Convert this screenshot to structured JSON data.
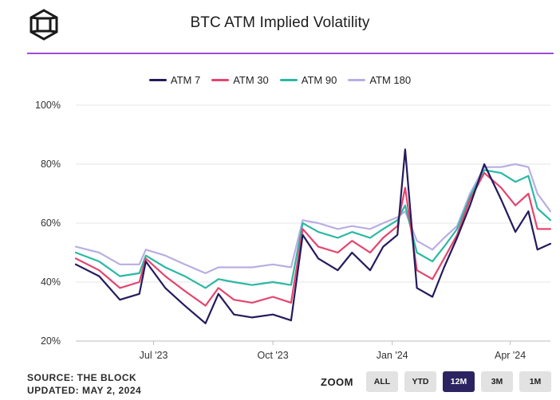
{
  "header": {
    "title": "BTC ATM Implied Volatility"
  },
  "footer": {
    "source": "SOURCE: THE BLOCK",
    "updated": "UPDATED: MAY 2, 2024"
  },
  "zoom": {
    "label": "ZOOM",
    "buttons": [
      "ALL",
      "YTD",
      "12M",
      "3M",
      "1M"
    ],
    "active": "12M"
  },
  "colors": {
    "atm7": "#241b5c",
    "atm30": "#e3456e",
    "atm90": "#2bb8a3",
    "atm180": "#b9aee3",
    "accent_rule": "#a14ad8",
    "grid": "#e4e4e4"
  },
  "chart_data": {
    "type": "line",
    "title": "BTC ATM Implied Volatility",
    "ylim": [
      20,
      100
    ],
    "yticks": [
      "20%",
      "40%",
      "60%",
      "80%",
      "100%"
    ],
    "ytick_values": [
      20,
      40,
      60,
      80,
      100
    ],
    "xlim": [
      "2023-05-02",
      "2024-05-02"
    ],
    "x_ticks": [
      {
        "label": "Jul '23",
        "date": "2023-07-01"
      },
      {
        "label": "Oct '23",
        "date": "2023-10-01"
      },
      {
        "label": "Jan '24",
        "date": "2024-01-01"
      },
      {
        "label": "Apr '24",
        "date": "2024-04-01"
      }
    ],
    "legend": [
      "ATM 7",
      "ATM 30",
      "ATM 90",
      "ATM 180"
    ],
    "series": [
      {
        "name": "ATM 7",
        "dates": [
          "2023-05-02",
          "2023-05-20",
          "2023-06-05",
          "2023-06-20",
          "2023-06-25",
          "2023-07-10",
          "2023-07-25",
          "2023-08-10",
          "2023-08-20",
          "2023-09-01",
          "2023-09-15",
          "2023-10-01",
          "2023-10-15",
          "2023-10-24",
          "2023-11-05",
          "2023-11-20",
          "2023-12-01",
          "2023-12-15",
          "2023-12-25",
          "2024-01-05",
          "2024-01-11",
          "2024-01-20",
          "2024-02-01",
          "2024-02-10",
          "2024-02-20",
          "2024-03-01",
          "2024-03-12",
          "2024-03-25",
          "2024-04-05",
          "2024-04-15",
          "2024-04-22",
          "2024-05-02"
        ],
        "values": [
          46,
          42,
          34,
          36,
          47,
          38,
          32,
          26,
          36,
          29,
          28,
          29,
          27,
          56,
          48,
          44,
          50,
          44,
          52,
          56,
          85,
          38,
          35,
          45,
          55,
          66,
          80,
          68,
          57,
          64,
          51,
          53
        ]
      },
      {
        "name": "ATM 30",
        "dates": [
          "2023-05-02",
          "2023-05-20",
          "2023-06-05",
          "2023-06-20",
          "2023-06-25",
          "2023-07-10",
          "2023-07-25",
          "2023-08-10",
          "2023-08-20",
          "2023-09-01",
          "2023-09-15",
          "2023-10-01",
          "2023-10-15",
          "2023-10-24",
          "2023-11-05",
          "2023-11-20",
          "2023-12-01",
          "2023-12-15",
          "2023-12-25",
          "2024-01-05",
          "2024-01-11",
          "2024-01-20",
          "2024-02-01",
          "2024-02-10",
          "2024-02-20",
          "2024-03-01",
          "2024-03-12",
          "2024-03-25",
          "2024-04-05",
          "2024-04-15",
          "2024-04-22",
          "2024-05-02"
        ],
        "values": [
          48,
          44,
          38,
          40,
          48,
          42,
          37,
          32,
          38,
          34,
          33,
          35,
          33,
          58,
          52,
          50,
          54,
          50,
          55,
          59,
          72,
          44,
          41,
          48,
          56,
          68,
          77,
          72,
          66,
          70,
          58,
          58
        ]
      },
      {
        "name": "ATM 90",
        "dates": [
          "2023-05-02",
          "2023-05-20",
          "2023-06-05",
          "2023-06-20",
          "2023-06-25",
          "2023-07-10",
          "2023-07-25",
          "2023-08-10",
          "2023-08-20",
          "2023-09-01",
          "2023-09-15",
          "2023-10-01",
          "2023-10-15",
          "2023-10-24",
          "2023-11-05",
          "2023-11-20",
          "2023-12-01",
          "2023-12-15",
          "2023-12-25",
          "2024-01-05",
          "2024-01-11",
          "2024-01-20",
          "2024-02-01",
          "2024-02-10",
          "2024-02-20",
          "2024-03-01",
          "2024-03-12",
          "2024-03-25",
          "2024-04-05",
          "2024-04-15",
          "2024-04-22",
          "2024-05-02"
        ],
        "values": [
          50,
          47,
          42,
          43,
          49,
          45,
          42,
          38,
          41,
          40,
          39,
          40,
          39,
          60,
          57,
          55,
          57,
          55,
          58,
          61,
          66,
          50,
          47,
          52,
          58,
          69,
          78,
          77,
          74,
          76,
          65,
          61
        ]
      },
      {
        "name": "ATM 180",
        "dates": [
          "2023-05-02",
          "2023-05-20",
          "2023-06-05",
          "2023-06-20",
          "2023-06-25",
          "2023-07-10",
          "2023-07-25",
          "2023-08-10",
          "2023-08-20",
          "2023-09-01",
          "2023-09-15",
          "2023-10-01",
          "2023-10-15",
          "2023-10-24",
          "2023-11-05",
          "2023-11-20",
          "2023-12-01",
          "2023-12-15",
          "2023-12-25",
          "2024-01-05",
          "2024-01-11",
          "2024-01-20",
          "2024-02-01",
          "2024-02-10",
          "2024-02-20",
          "2024-03-01",
          "2024-03-12",
          "2024-03-25",
          "2024-04-05",
          "2024-04-15",
          "2024-04-22",
          "2024-05-02"
        ],
        "values": [
          52,
          50,
          46,
          46,
          51,
          49,
          46,
          43,
          45,
          45,
          45,
          46,
          45,
          61,
          60,
          58,
          59,
          58,
          60,
          62,
          64,
          54,
          51,
          55,
          59,
          70,
          79,
          79,
          80,
          79,
          70,
          64
        ]
      }
    ]
  }
}
